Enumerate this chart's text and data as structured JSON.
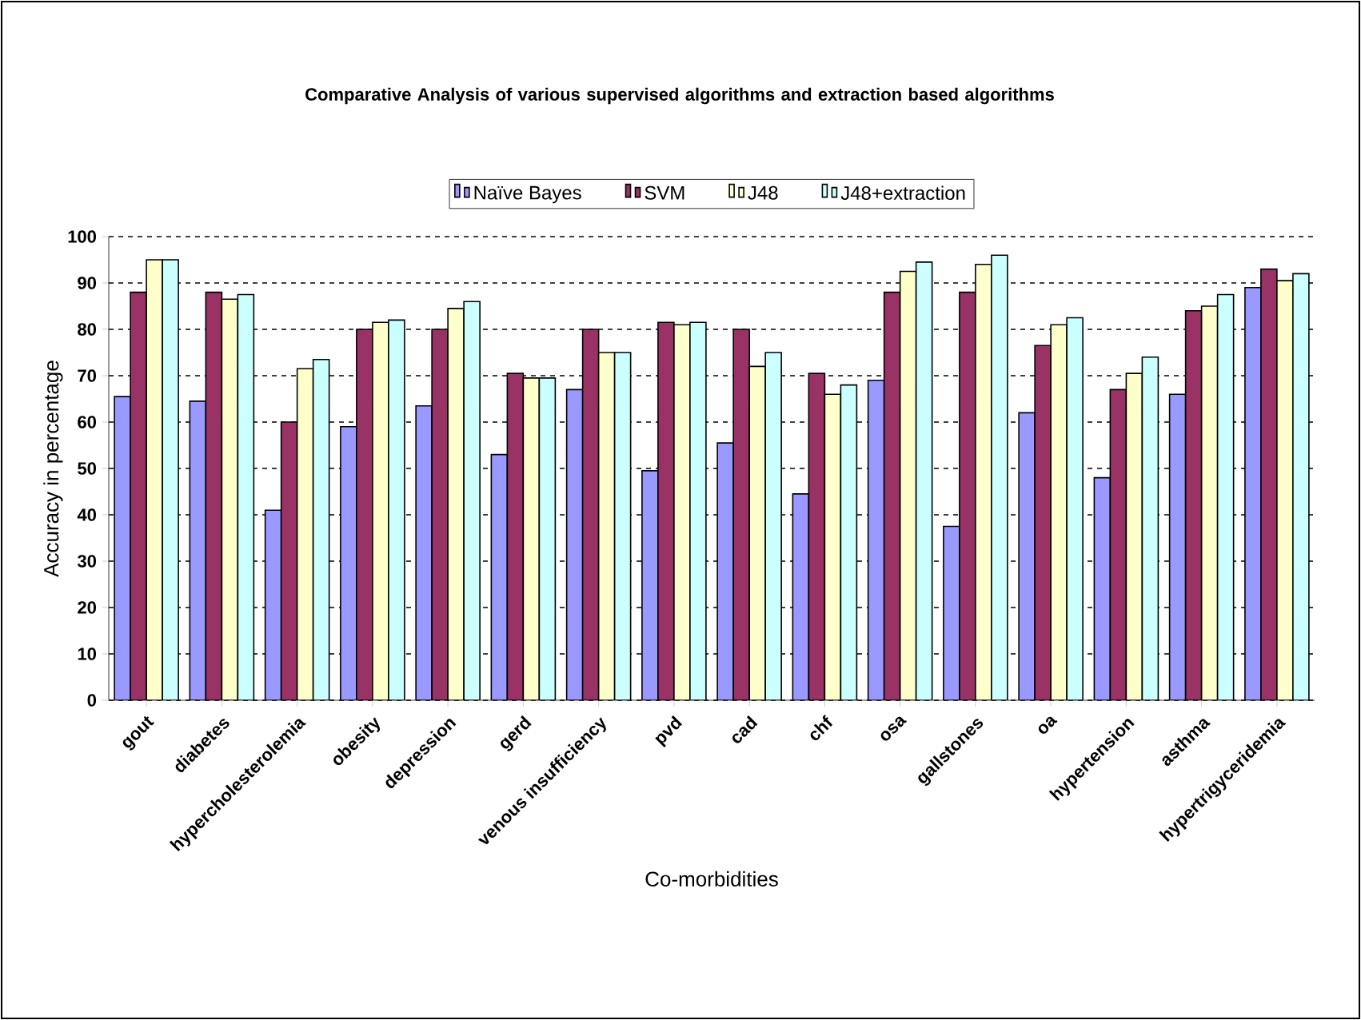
{
  "chart_data": {
    "type": "bar",
    "title": "Comparative Analysis of various supervised algorithms and extraction based algorithms",
    "xlabel": "Co-morbidities",
    "ylabel": "Accuracy in percentage",
    "categories": [
      "gout",
      "diabetes",
      "hypercholesterolemia",
      "obesity",
      "depression",
      "gerd",
      "venous insufficiency",
      "pvd",
      "cad",
      "chf",
      "osa",
      "gallstones",
      "oa",
      "hypertension",
      "asthma",
      "hypertrigyceridemia"
    ],
    "series": [
      {
        "name": "Naïve Bayes",
        "color": "#9999ff",
        "values": [
          65.5,
          64.5,
          41,
          59,
          63.5,
          53,
          67,
          49.5,
          55.5,
          44.5,
          69,
          37.5,
          62,
          48,
          66,
          89
        ]
      },
      {
        "name": "SVM",
        "color": "#993366",
        "values": [
          88,
          88,
          60,
          80,
          80,
          70.5,
          80,
          81.5,
          80,
          70.5,
          88,
          88,
          76.5,
          67,
          84,
          93
        ]
      },
      {
        "name": "J48",
        "color": "#ffffcc",
        "values": [
          95,
          86.5,
          71.5,
          81.5,
          84.5,
          69.5,
          75,
          81,
          72,
          66,
          92.5,
          94,
          81,
          70.5,
          85,
          90.5
        ]
      },
      {
        "name": "J48+extraction",
        "color": "#ccffff",
        "values": [
          95,
          87.5,
          73.5,
          82,
          86,
          69.5,
          75,
          81.5,
          75,
          68,
          94.5,
          96,
          82.5,
          74,
          87.5,
          92
        ]
      }
    ],
    "ylim": [
      0,
      100
    ],
    "yticks": [
      0,
      10,
      20,
      30,
      40,
      50,
      60,
      70,
      80,
      90,
      100
    ],
    "grid": "y",
    "legend": "top"
  }
}
